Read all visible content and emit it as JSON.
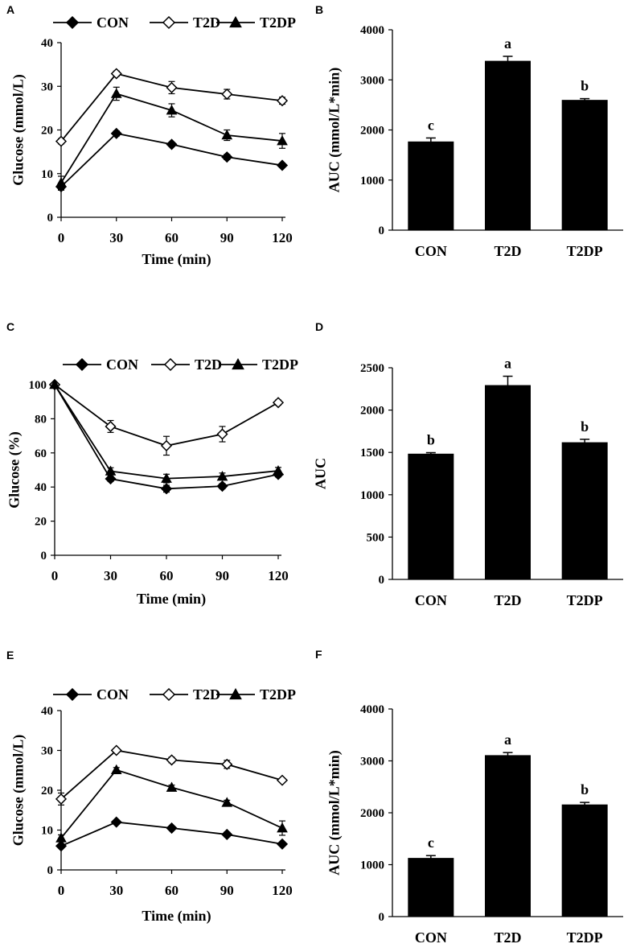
{
  "figure": {
    "series_styles": {
      "CON": {
        "marker": "filled-diamond",
        "color": "#000000"
      },
      "T2D": {
        "marker": "open-diamond",
        "color": "#000000"
      },
      "T2DP": {
        "marker": "filled-triangle",
        "color": "#000000"
      }
    },
    "bar_color": "#000000"
  },
  "chart_data": [
    {
      "panel": "A",
      "type": "line",
      "x": [
        0,
        30,
        60,
        90,
        120
      ],
      "xlabel": "Time (min)",
      "ylabel": "Glucose (mmol/L)",
      "xlim": [
        0,
        120
      ],
      "ylim": [
        0,
        40
      ],
      "yticks": [
        0,
        10,
        20,
        30,
        40
      ],
      "xticks": [
        0,
        30,
        60,
        90,
        120
      ],
      "legend": [
        "CON",
        "T2D",
        "T2DP"
      ],
      "series": [
        {
          "name": "CON",
          "values": [
            7.0,
            19.2,
            16.7,
            13.8,
            11.9
          ],
          "errors": [
            0.8,
            0.6,
            0.5,
            0.6,
            0.5
          ]
        },
        {
          "name": "T2D",
          "values": [
            17.4,
            32.9,
            29.7,
            28.2,
            26.7
          ],
          "errors": [
            0.6,
            0.6,
            1.4,
            1.1,
            0.8
          ]
        },
        {
          "name": "T2DP",
          "values": [
            7.9,
            28.3,
            24.5,
            18.8,
            17.5
          ],
          "errors": [
            1.5,
            1.5,
            1.5,
            1.2,
            1.7
          ]
        }
      ]
    },
    {
      "panel": "B",
      "type": "bar",
      "categories": [
        "CON",
        "T2D",
        "T2DP"
      ],
      "values": [
        1770,
        3380,
        2600
      ],
      "errors": [
        70,
        90,
        25
      ],
      "labels": [
        "c",
        "a",
        "b"
      ],
      "ylabel": "AUC (mmol/L*min)",
      "ylim": [
        0,
        4000
      ],
      "yticks": [
        0,
        1000,
        2000,
        3000,
        4000
      ]
    },
    {
      "panel": "C",
      "type": "line",
      "x": [
        0,
        30,
        60,
        90,
        120
      ],
      "xlabel": "Time (min)",
      "ylabel": "Glucose (%)",
      "xlim": [
        0,
        120
      ],
      "ylim": [
        0,
        100
      ],
      "yticks": [
        0,
        20,
        40,
        60,
        80,
        100
      ],
      "xticks": [
        0,
        30,
        60,
        90,
        120
      ],
      "legend": [
        "CON",
        "T2D",
        "T2DP"
      ],
      "series": [
        {
          "name": "CON",
          "values": [
            100,
            44.8,
            39.0,
            40.5,
            47.4
          ],
          "errors": [
            0,
            1.5,
            2.0,
            1.5,
            1.5
          ]
        },
        {
          "name": "T2D",
          "values": [
            100,
            75.5,
            64.2,
            71.0,
            89.5
          ],
          "errors": [
            0,
            3.5,
            5.5,
            4.5,
            1.5
          ]
        },
        {
          "name": "T2DP",
          "values": [
            100,
            49.3,
            45.0,
            46.2,
            49.5
          ],
          "errors": [
            0,
            2.0,
            2.5,
            2.0,
            2.0
          ]
        }
      ]
    },
    {
      "panel": "D",
      "type": "bar",
      "categories": [
        "CON",
        "T2D",
        "T2DP"
      ],
      "values": [
        1485,
        2295,
        1620
      ],
      "errors": [
        12,
        105,
        35
      ],
      "labels": [
        "b",
        "a",
        "b"
      ],
      "ylabel": "AUC",
      "ylim": [
        0,
        2500
      ],
      "yticks": [
        0,
        500,
        1000,
        1500,
        2000,
        2500
      ]
    },
    {
      "panel": "E",
      "type": "line",
      "x": [
        0,
        30,
        60,
        90,
        120
      ],
      "xlabel": "Time (min)",
      "ylabel": "Glucose (mmol/L)",
      "xlim": [
        0,
        120
      ],
      "ylim": [
        0,
        40
      ],
      "yticks": [
        0,
        10,
        20,
        30,
        40
      ],
      "xticks": [
        0,
        30,
        60,
        90,
        120
      ],
      "legend": [
        "CON",
        "T2D",
        "T2DP"
      ],
      "series": [
        {
          "name": "CON",
          "values": [
            6.0,
            12.0,
            10.5,
            8.9,
            6.5
          ],
          "errors": [
            0.4,
            0.4,
            0.4,
            0.6,
            0.5
          ]
        },
        {
          "name": "T2D",
          "values": [
            17.8,
            30.0,
            27.6,
            26.5,
            22.5
          ],
          "errors": [
            1.5,
            0.4,
            0.7,
            1.0,
            0.5
          ]
        },
        {
          "name": "T2DP",
          "values": [
            8.0,
            25.1,
            20.7,
            16.9,
            10.5
          ],
          "errors": [
            0.8,
            0.6,
            0.6,
            0.6,
            1.8
          ]
        }
      ]
    },
    {
      "panel": "F",
      "type": "bar",
      "categories": [
        "CON",
        "T2D",
        "T2DP"
      ],
      "values": [
        1130,
        3110,
        2160
      ],
      "errors": [
        45,
        50,
        40
      ],
      "labels": [
        "c",
        "a",
        "b"
      ],
      "ylabel": "AUC (mmol/L*min)",
      "ylim": [
        0,
        4000
      ],
      "yticks": [
        0,
        1000,
        2000,
        3000,
        4000
      ]
    }
  ]
}
